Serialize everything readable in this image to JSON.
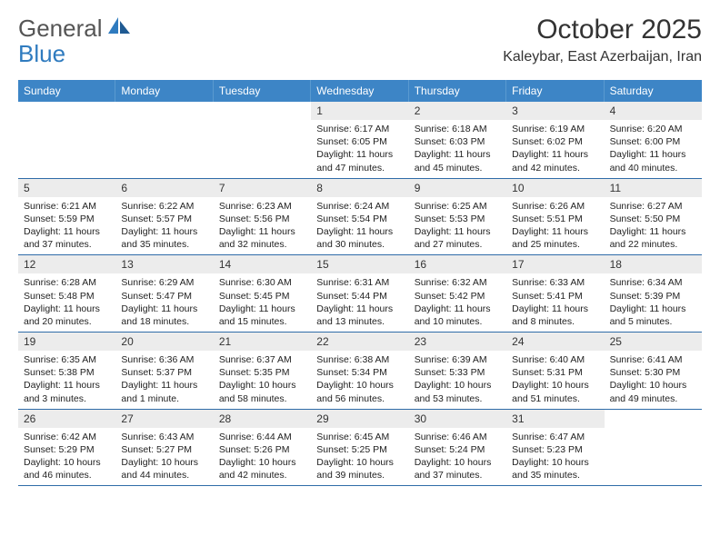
{
  "logo": {
    "part1": "General",
    "part2": "Blue"
  },
  "title": "October 2025",
  "location": "Kaleybar, East Azerbaijan, Iran",
  "weekdays": [
    "Sunday",
    "Monday",
    "Tuesday",
    "Wednesday",
    "Thursday",
    "Friday",
    "Saturday"
  ],
  "colors": {
    "header_bg": "#3d85c6",
    "header_text": "#ffffff",
    "daynum_bg": "#ececec",
    "week_border": "#2f6ca8",
    "logo_gray": "#555555",
    "logo_blue": "#2f7bbf"
  },
  "weeks": [
    [
      null,
      null,
      null,
      {
        "n": "1",
        "sr": "Sunrise: 6:17 AM",
        "ss": "Sunset: 6:05 PM",
        "dl1": "Daylight: 11 hours",
        "dl2": "and 47 minutes."
      },
      {
        "n": "2",
        "sr": "Sunrise: 6:18 AM",
        "ss": "Sunset: 6:03 PM",
        "dl1": "Daylight: 11 hours",
        "dl2": "and 45 minutes."
      },
      {
        "n": "3",
        "sr": "Sunrise: 6:19 AM",
        "ss": "Sunset: 6:02 PM",
        "dl1": "Daylight: 11 hours",
        "dl2": "and 42 minutes."
      },
      {
        "n": "4",
        "sr": "Sunrise: 6:20 AM",
        "ss": "Sunset: 6:00 PM",
        "dl1": "Daylight: 11 hours",
        "dl2": "and 40 minutes."
      }
    ],
    [
      {
        "n": "5",
        "sr": "Sunrise: 6:21 AM",
        "ss": "Sunset: 5:59 PM",
        "dl1": "Daylight: 11 hours",
        "dl2": "and 37 minutes."
      },
      {
        "n": "6",
        "sr": "Sunrise: 6:22 AM",
        "ss": "Sunset: 5:57 PM",
        "dl1": "Daylight: 11 hours",
        "dl2": "and 35 minutes."
      },
      {
        "n": "7",
        "sr": "Sunrise: 6:23 AM",
        "ss": "Sunset: 5:56 PM",
        "dl1": "Daylight: 11 hours",
        "dl2": "and 32 minutes."
      },
      {
        "n": "8",
        "sr": "Sunrise: 6:24 AM",
        "ss": "Sunset: 5:54 PM",
        "dl1": "Daylight: 11 hours",
        "dl2": "and 30 minutes."
      },
      {
        "n": "9",
        "sr": "Sunrise: 6:25 AM",
        "ss": "Sunset: 5:53 PM",
        "dl1": "Daylight: 11 hours",
        "dl2": "and 27 minutes."
      },
      {
        "n": "10",
        "sr": "Sunrise: 6:26 AM",
        "ss": "Sunset: 5:51 PM",
        "dl1": "Daylight: 11 hours",
        "dl2": "and 25 minutes."
      },
      {
        "n": "11",
        "sr": "Sunrise: 6:27 AM",
        "ss": "Sunset: 5:50 PM",
        "dl1": "Daylight: 11 hours",
        "dl2": "and 22 minutes."
      }
    ],
    [
      {
        "n": "12",
        "sr": "Sunrise: 6:28 AM",
        "ss": "Sunset: 5:48 PM",
        "dl1": "Daylight: 11 hours",
        "dl2": "and 20 minutes."
      },
      {
        "n": "13",
        "sr": "Sunrise: 6:29 AM",
        "ss": "Sunset: 5:47 PM",
        "dl1": "Daylight: 11 hours",
        "dl2": "and 18 minutes."
      },
      {
        "n": "14",
        "sr": "Sunrise: 6:30 AM",
        "ss": "Sunset: 5:45 PM",
        "dl1": "Daylight: 11 hours",
        "dl2": "and 15 minutes."
      },
      {
        "n": "15",
        "sr": "Sunrise: 6:31 AM",
        "ss": "Sunset: 5:44 PM",
        "dl1": "Daylight: 11 hours",
        "dl2": "and 13 minutes."
      },
      {
        "n": "16",
        "sr": "Sunrise: 6:32 AM",
        "ss": "Sunset: 5:42 PM",
        "dl1": "Daylight: 11 hours",
        "dl2": "and 10 minutes."
      },
      {
        "n": "17",
        "sr": "Sunrise: 6:33 AM",
        "ss": "Sunset: 5:41 PM",
        "dl1": "Daylight: 11 hours",
        "dl2": "and 8 minutes."
      },
      {
        "n": "18",
        "sr": "Sunrise: 6:34 AM",
        "ss": "Sunset: 5:39 PM",
        "dl1": "Daylight: 11 hours",
        "dl2": "and 5 minutes."
      }
    ],
    [
      {
        "n": "19",
        "sr": "Sunrise: 6:35 AM",
        "ss": "Sunset: 5:38 PM",
        "dl1": "Daylight: 11 hours",
        "dl2": "and 3 minutes."
      },
      {
        "n": "20",
        "sr": "Sunrise: 6:36 AM",
        "ss": "Sunset: 5:37 PM",
        "dl1": "Daylight: 11 hours",
        "dl2": "and 1 minute."
      },
      {
        "n": "21",
        "sr": "Sunrise: 6:37 AM",
        "ss": "Sunset: 5:35 PM",
        "dl1": "Daylight: 10 hours",
        "dl2": "and 58 minutes."
      },
      {
        "n": "22",
        "sr": "Sunrise: 6:38 AM",
        "ss": "Sunset: 5:34 PM",
        "dl1": "Daylight: 10 hours",
        "dl2": "and 56 minutes."
      },
      {
        "n": "23",
        "sr": "Sunrise: 6:39 AM",
        "ss": "Sunset: 5:33 PM",
        "dl1": "Daylight: 10 hours",
        "dl2": "and 53 minutes."
      },
      {
        "n": "24",
        "sr": "Sunrise: 6:40 AM",
        "ss": "Sunset: 5:31 PM",
        "dl1": "Daylight: 10 hours",
        "dl2": "and 51 minutes."
      },
      {
        "n": "25",
        "sr": "Sunrise: 6:41 AM",
        "ss": "Sunset: 5:30 PM",
        "dl1": "Daylight: 10 hours",
        "dl2": "and 49 minutes."
      }
    ],
    [
      {
        "n": "26",
        "sr": "Sunrise: 6:42 AM",
        "ss": "Sunset: 5:29 PM",
        "dl1": "Daylight: 10 hours",
        "dl2": "and 46 minutes."
      },
      {
        "n": "27",
        "sr": "Sunrise: 6:43 AM",
        "ss": "Sunset: 5:27 PM",
        "dl1": "Daylight: 10 hours",
        "dl2": "and 44 minutes."
      },
      {
        "n": "28",
        "sr": "Sunrise: 6:44 AM",
        "ss": "Sunset: 5:26 PM",
        "dl1": "Daylight: 10 hours",
        "dl2": "and 42 minutes."
      },
      {
        "n": "29",
        "sr": "Sunrise: 6:45 AM",
        "ss": "Sunset: 5:25 PM",
        "dl1": "Daylight: 10 hours",
        "dl2": "and 39 minutes."
      },
      {
        "n": "30",
        "sr": "Sunrise: 6:46 AM",
        "ss": "Sunset: 5:24 PM",
        "dl1": "Daylight: 10 hours",
        "dl2": "and 37 minutes."
      },
      {
        "n": "31",
        "sr": "Sunrise: 6:47 AM",
        "ss": "Sunset: 5:23 PM",
        "dl1": "Daylight: 10 hours",
        "dl2": "and 35 minutes."
      },
      null
    ]
  ]
}
